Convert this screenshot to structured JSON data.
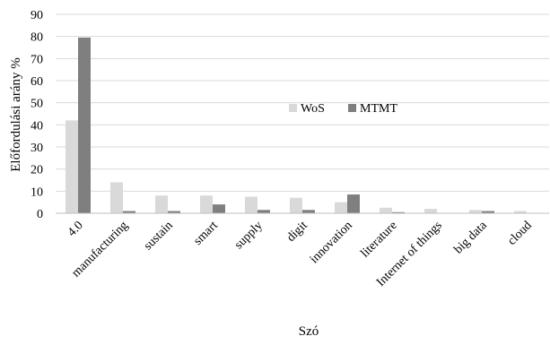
{
  "chart_data": {
    "type": "bar",
    "title": "",
    "xlabel": "Szó",
    "ylabel": "Előfordulási arány %",
    "ylim": [
      0,
      90
    ],
    "yticks": [
      0,
      10,
      20,
      30,
      40,
      50,
      60,
      70,
      80,
      90
    ],
    "grid": "horizontal",
    "legend_position": "center",
    "categories": [
      "4.0",
      "manufacturing",
      "sustain",
      "smart",
      "supply",
      "digit",
      "innovation",
      "literature",
      "Internet of things",
      "big data",
      "cloud"
    ],
    "series": [
      {
        "name": "WoS",
        "color": "#d9d9d9",
        "values": [
          42,
          14,
          8,
          8,
          7.5,
          7,
          5,
          2.5,
          2,
          1.5,
          1
        ]
      },
      {
        "name": "MTMT",
        "color": "#7f7f7f",
        "values": [
          79.5,
          1,
          1,
          4,
          1.5,
          1.5,
          8.5,
          0.5,
          0,
          1,
          0
        ]
      }
    ]
  }
}
